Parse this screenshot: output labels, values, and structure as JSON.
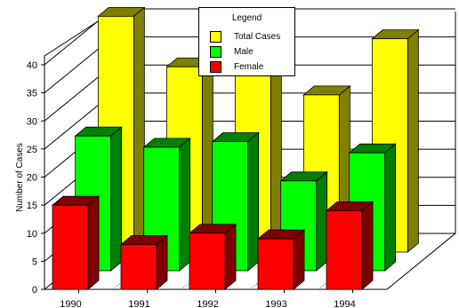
{
  "chart_data": {
    "type": "bar",
    "categories": [
      "1990",
      "1991",
      "1992",
      "1993",
      "1994"
    ],
    "ylabel": "Number of Cases",
    "xlabel": "",
    "ylim": [
      0,
      40
    ],
    "yticks": [
      0,
      5,
      10,
      15,
      20,
      25,
      30,
      35,
      40
    ],
    "grid": "back-wall horizontal lines and side-wall diagonal lines",
    "style": "3d-clustered-depth",
    "legend": {
      "title": "Legend",
      "placement": "top-center"
    },
    "series": [
      {
        "name": "Total Cases",
        "values": [
          42,
          33,
          35.5,
          28,
          38
        ],
        "color": "#ffff00",
        "side_color": "#808000"
      },
      {
        "name": "Male",
        "values": [
          24,
          22,
          23,
          16,
          21
        ],
        "color": "#00ff00",
        "side_color": "#008000"
      },
      {
        "name": "Female",
        "values": [
          15,
          8,
          10,
          9,
          14
        ],
        "color": "#ff0000",
        "side_color": "#800000"
      }
    ]
  }
}
